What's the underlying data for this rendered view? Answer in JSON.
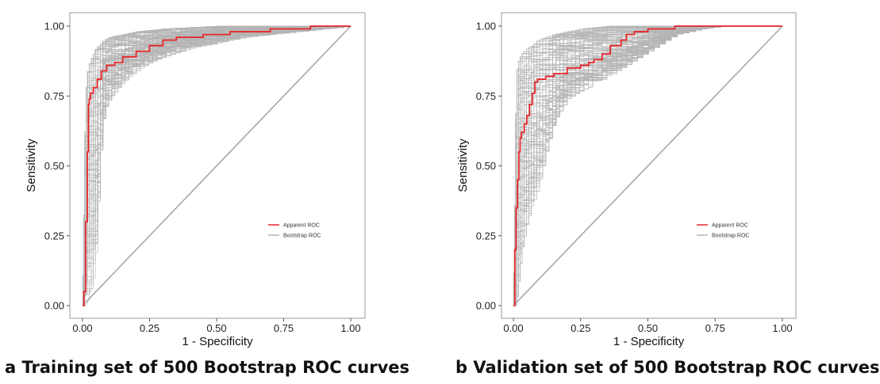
{
  "chart_data": [
    {
      "type": "line",
      "caption": "a Training set of 500 Bootstrap ROC curves",
      "xlabel": "1 - Specificity",
      "ylabel": "Sensitivity",
      "xlim": [
        0,
        1
      ],
      "ylim": [
        0,
        1
      ],
      "xticks": [
        "0.00",
        "0.25",
        "0.50",
        "0.75",
        "1.00"
      ],
      "yticks": [
        "0.00",
        "0.25",
        "0.50",
        "0.75",
        "1.00"
      ],
      "grid": false,
      "legend_position": "lower-right",
      "series": [
        {
          "name": "Apparent ROC",
          "color": "#e8262a",
          "x": [
            0,
            0.005,
            0.012,
            0.018,
            0.022,
            0.025,
            0.03,
            0.04,
            0.055,
            0.07,
            0.09,
            0.12,
            0.15,
            0.2,
            0.25,
            0.3,
            0.35,
            0.4,
            0.45,
            0.5,
            0.55,
            0.6,
            0.7,
            0.75,
            0.85,
            1.0
          ],
          "y": [
            0,
            0.05,
            0.3,
            0.55,
            0.72,
            0.74,
            0.76,
            0.78,
            0.81,
            0.84,
            0.86,
            0.87,
            0.89,
            0.91,
            0.93,
            0.95,
            0.96,
            0.96,
            0.97,
            0.97,
            0.98,
            0.98,
            0.99,
            0.99,
            1.0,
            1.0
          ]
        },
        {
          "name": "Bootstrap ROC",
          "color": "#b5b5b5",
          "replicates": 500,
          "band": {
            "x": [
              0,
              0.01,
              0.02,
              0.03,
              0.04,
              0.05,
              0.06,
              0.07,
              0.08,
              0.1,
              0.15,
              0.2,
              0.25,
              0.3,
              0.4,
              0.5,
              0.6,
              0.7,
              0.8,
              0.9,
              1.0
            ],
            "lower": [
              0,
              0.0,
              0.02,
              0.05,
              0.1,
              0.2,
              0.45,
              0.62,
              0.7,
              0.74,
              0.8,
              0.84,
              0.87,
              0.89,
              0.92,
              0.94,
              0.96,
              0.97,
              0.98,
              0.99,
              1.0
            ],
            "upper": [
              0,
              0.75,
              0.85,
              0.88,
              0.9,
              0.92,
              0.93,
              0.94,
              0.95,
              0.96,
              0.97,
              0.98,
              0.985,
              0.99,
              0.995,
              1.0,
              1.0,
              1.0,
              1.0,
              1.0,
              1.0
            ]
          }
        }
      ]
    },
    {
      "type": "line",
      "caption": "b Validation set of 500 Bootstrap ROC curves",
      "xlabel": "1 - Specificity",
      "ylabel": "Sensitivity",
      "xlim": [
        0,
        1
      ],
      "ylim": [
        0,
        1
      ],
      "xticks": [
        "0.00",
        "0.25",
        "0.50",
        "0.75",
        "1.00"
      ],
      "yticks": [
        "0.00",
        "0.25",
        "0.50",
        "0.75",
        "1.00"
      ],
      "grid": false,
      "legend_position": "center-right",
      "series": [
        {
          "name": "Apparent ROC",
          "color": "#e8262a",
          "x": [
            0,
            0.005,
            0.01,
            0.015,
            0.02,
            0.025,
            0.03,
            0.04,
            0.05,
            0.06,
            0.07,
            0.08,
            0.09,
            0.12,
            0.15,
            0.2,
            0.25,
            0.28,
            0.3,
            0.33,
            0.36,
            0.4,
            0.42,
            0.45,
            0.5,
            0.55,
            0.6,
            0.7,
            0.8,
            1.0
          ],
          "y": [
            0,
            0.2,
            0.35,
            0.45,
            0.55,
            0.6,
            0.62,
            0.65,
            0.68,
            0.72,
            0.76,
            0.8,
            0.81,
            0.82,
            0.83,
            0.85,
            0.86,
            0.87,
            0.88,
            0.9,
            0.93,
            0.95,
            0.97,
            0.98,
            0.99,
            0.99,
            1.0,
            1.0,
            1.0,
            1.0
          ]
        },
        {
          "name": "Bootstrap ROC",
          "color": "#b5b5b5",
          "replicates": 500,
          "band": {
            "x": [
              0,
              0.01,
              0.02,
              0.03,
              0.05,
              0.07,
              0.09,
              0.12,
              0.15,
              0.2,
              0.25,
              0.3,
              0.35,
              0.4,
              0.45,
              0.5,
              0.55,
              0.6,
              0.7,
              0.78,
              0.9,
              1.0
            ],
            "lower": [
              0,
              0.0,
              0.1,
              0.2,
              0.3,
              0.36,
              0.42,
              0.55,
              0.66,
              0.74,
              0.77,
              0.79,
              0.82,
              0.85,
              0.88,
              0.91,
              0.94,
              0.97,
              0.99,
              1.0,
              1.0,
              1.0
            ],
            "upper": [
              0,
              0.83,
              0.88,
              0.9,
              0.92,
              0.93,
              0.95,
              0.96,
              0.97,
              0.98,
              0.99,
              0.995,
              1.0,
              1.0,
              1.0,
              1.0,
              1.0,
              1.0,
              1.0,
              1.0,
              1.0,
              1.0
            ]
          }
        }
      ]
    }
  ]
}
